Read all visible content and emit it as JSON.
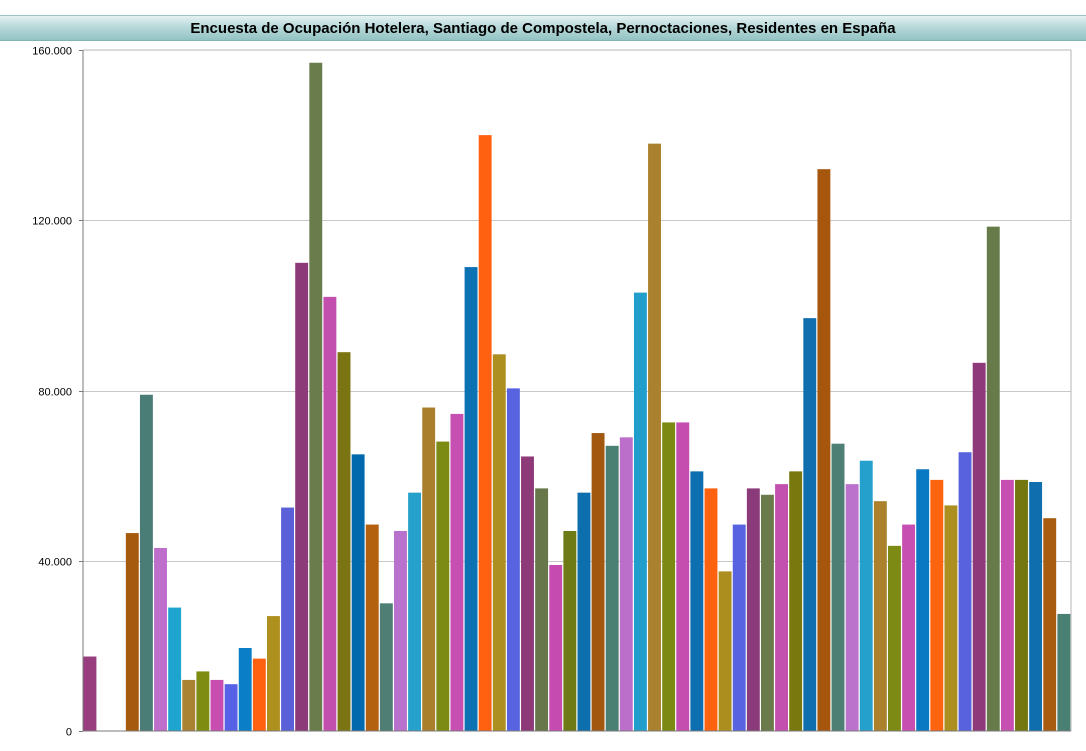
{
  "title": "Encuesta de Ocupación Hotelera, Santiago de Compostela, Pernoctaciones, Residentes en España",
  "chart_data": {
    "type": "bar",
    "title": "Encuesta de Ocupación Hotelera, Santiago de Compostela, Pernoctaciones, Residentes en España",
    "xlabel": "",
    "ylabel": "",
    "ylim": [
      0,
      160000
    ],
    "grid": true,
    "yticks": [
      {
        "value": 0,
        "label": "0"
      },
      {
        "value": 40000,
        "label": "40.000"
      },
      {
        "value": 80000,
        "label": "80.000"
      },
      {
        "value": 120000,
        "label": "120.000"
      },
      {
        "value": 160000,
        "label": "160.000"
      }
    ],
    "values": [
      17500,
      0,
      0,
      46500,
      79000,
      43000,
      29000,
      12000,
      14000,
      12000,
      11000,
      19500,
      17000,
      27000,
      52500,
      110000,
      157000,
      102000,
      89000,
      65000,
      48500,
      30000,
      47000,
      56000,
      76000,
      68000,
      74500,
      109000,
      140000,
      88500,
      80500,
      64500,
      57000,
      39000,
      47000,
      56000,
      70000,
      67000,
      69000,
      103000,
      138000,
      72500,
      72500,
      61000,
      57000,
      37500,
      48500,
      57000,
      55500,
      58000,
      61000,
      97000,
      132000,
      67500,
      58000,
      63500,
      54000,
      43500,
      48500,
      61500,
      59000,
      53000,
      65500,
      86500,
      118500,
      59000,
      59000,
      58500,
      50000,
      27500
    ],
    "palette": [
      "#983d7e",
      "#a0541e",
      "#0c72b2",
      "#a65a0e",
      "#4a7d76",
      "#bd6fcb",
      "#1da5cf",
      "#a98331",
      "#7e8d11",
      "#c84db1",
      "#5661e6",
      "#0a7ec6",
      "#ff6110",
      "#ad901e",
      "#5a61d8",
      "#8d3a79",
      "#6b7c4c",
      "#c24fae",
      "#7a7412",
      "#0069ad",
      "#b3600f",
      "#4f7f74",
      "#b871cc",
      "#26a1cc",
      "#aa7f2c",
      "#7b8b14",
      "#c64fb2",
      "#0c72b4",
      "#ff6111",
      "#ad8e20",
      "#5863e0",
      "#8e3a79",
      "#687749",
      "#c64bb1",
      "#6d7a16",
      "#0d6fae",
      "#a35810",
      "#4a7f74",
      "#bc6ecb",
      "#229ecd",
      "#aa812f",
      "#7c8a14",
      "#c54db0",
      "#0e6fb0",
      "#fe620f",
      "#ac8e1e",
      "#5763e0",
      "#8b3b79",
      "#6a7a4b",
      "#c34fae",
      "#78780f",
      "#0f6ead",
      "#a7560e",
      "#4e7f75",
      "#ba72cc",
      "#25a0cd",
      "#ab812e",
      "#7d8a13",
      "#c84fb2",
      "#0a79c4",
      "#fe630f",
      "#ab8f20",
      "#5862df",
      "#8e3a7a",
      "#677a4a",
      "#c64fb1",
      "#74770f",
      "#0e6eae",
      "#a85c10",
      "#4a7f73"
    ]
  }
}
